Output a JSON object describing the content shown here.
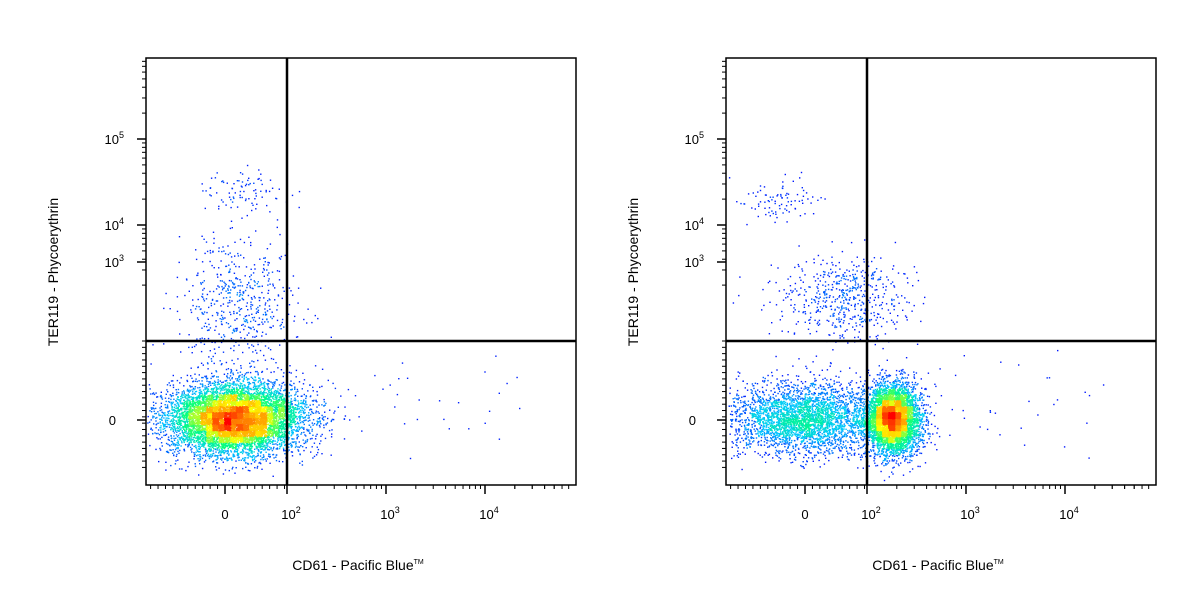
{
  "panels": [
    {
      "xlabel": "CD61 - Pacific Blue",
      "xlabel_mark": "TM",
      "ylabel": "TER119 - Phycoerythrin"
    },
    {
      "xlabel": "CD61 - Pacific Blue",
      "xlabel_mark": "TM",
      "ylabel": "TER119 - Phycoerythrin"
    }
  ],
  "chart_data": [
    {
      "type": "scatter",
      "title": "",
      "xlabel": "CD61 - Pacific Blue™",
      "ylabel": "TER119 - Phycoerythrin",
      "x_scale": "biexponential",
      "y_scale": "biexponential",
      "x_ticks": [
        {
          "value": 0,
          "base": "0",
          "exp": ""
        },
        {
          "value": 100,
          "base": "10",
          "exp": "2"
        },
        {
          "value": 1000,
          "base": "10",
          "exp": "3"
        },
        {
          "value": 10000,
          "base": "10",
          "exp": "4"
        }
      ],
      "y_ticks": [
        {
          "value": 0,
          "base": "0",
          "exp": ""
        },
        {
          "value": 1000,
          "base": "10",
          "exp": "3"
        },
        {
          "value": 10000,
          "base": "10",
          "exp": "4"
        },
        {
          "value": 100000,
          "base": "10",
          "exp": "5"
        }
      ],
      "gates": {
        "x": 100,
        "y": 500
      },
      "density_colormap": [
        "#0000ff",
        "#00c8ff",
        "#00ff80",
        "#ffff00",
        "#ff8000",
        "#ff0000"
      ],
      "populations": [
        {
          "x_center": 15,
          "y_center": 10,
          "x_spread": 60,
          "y_spread": 120,
          "fraction": 0.93
        },
        {
          "x_center": 20,
          "y_center": 1200,
          "x_spread": 50,
          "y_spread": 800,
          "fraction": 0.06
        },
        {
          "x_center": 30,
          "y_center": 25000,
          "x_spread": 40,
          "y_spread": 8000,
          "fraction": 0.01
        }
      ],
      "grid": false,
      "legend": "none"
    },
    {
      "type": "scatter",
      "title": "",
      "xlabel": "CD61 - Pacific Blue™",
      "ylabel": "TER119 - Phycoerythrin",
      "x_scale": "biexponential",
      "y_scale": "biexponential",
      "x_ticks": [
        {
          "value": 0,
          "base": "0",
          "exp": ""
        },
        {
          "value": 100,
          "base": "10",
          "exp": "2"
        },
        {
          "value": 1000,
          "base": "10",
          "exp": "3"
        },
        {
          "value": 10000,
          "base": "10",
          "exp": "4"
        }
      ],
      "y_ticks": [
        {
          "value": 0,
          "base": "0",
          "exp": ""
        },
        {
          "value": 1000,
          "base": "10",
          "exp": "3"
        },
        {
          "value": 10000,
          "base": "10",
          "exp": "4"
        },
        {
          "value": 100000,
          "base": "10",
          "exp": "5"
        }
      ],
      "gates": {
        "x": 100,
        "y": 500
      },
      "density_colormap": [
        "#0000ff",
        "#00c8ff",
        "#00ff80",
        "#ffff00",
        "#ff8000",
        "#ff0000"
      ],
      "populations": [
        {
          "x_center": 180,
          "y_center": 10,
          "x_spread": 60,
          "y_spread": 120,
          "fraction": 0.55
        },
        {
          "x_center": 0,
          "y_center": 10,
          "x_spread": 70,
          "y_spread": 120,
          "fraction": 0.38
        },
        {
          "x_center": 60,
          "y_center": 1500,
          "x_spread": 60,
          "y_spread": 900,
          "fraction": 0.06
        },
        {
          "x_center": -40,
          "y_center": 20000,
          "x_spread": 40,
          "y_spread": 6000,
          "fraction": 0.01
        }
      ],
      "grid": false,
      "legend": "none"
    }
  ]
}
